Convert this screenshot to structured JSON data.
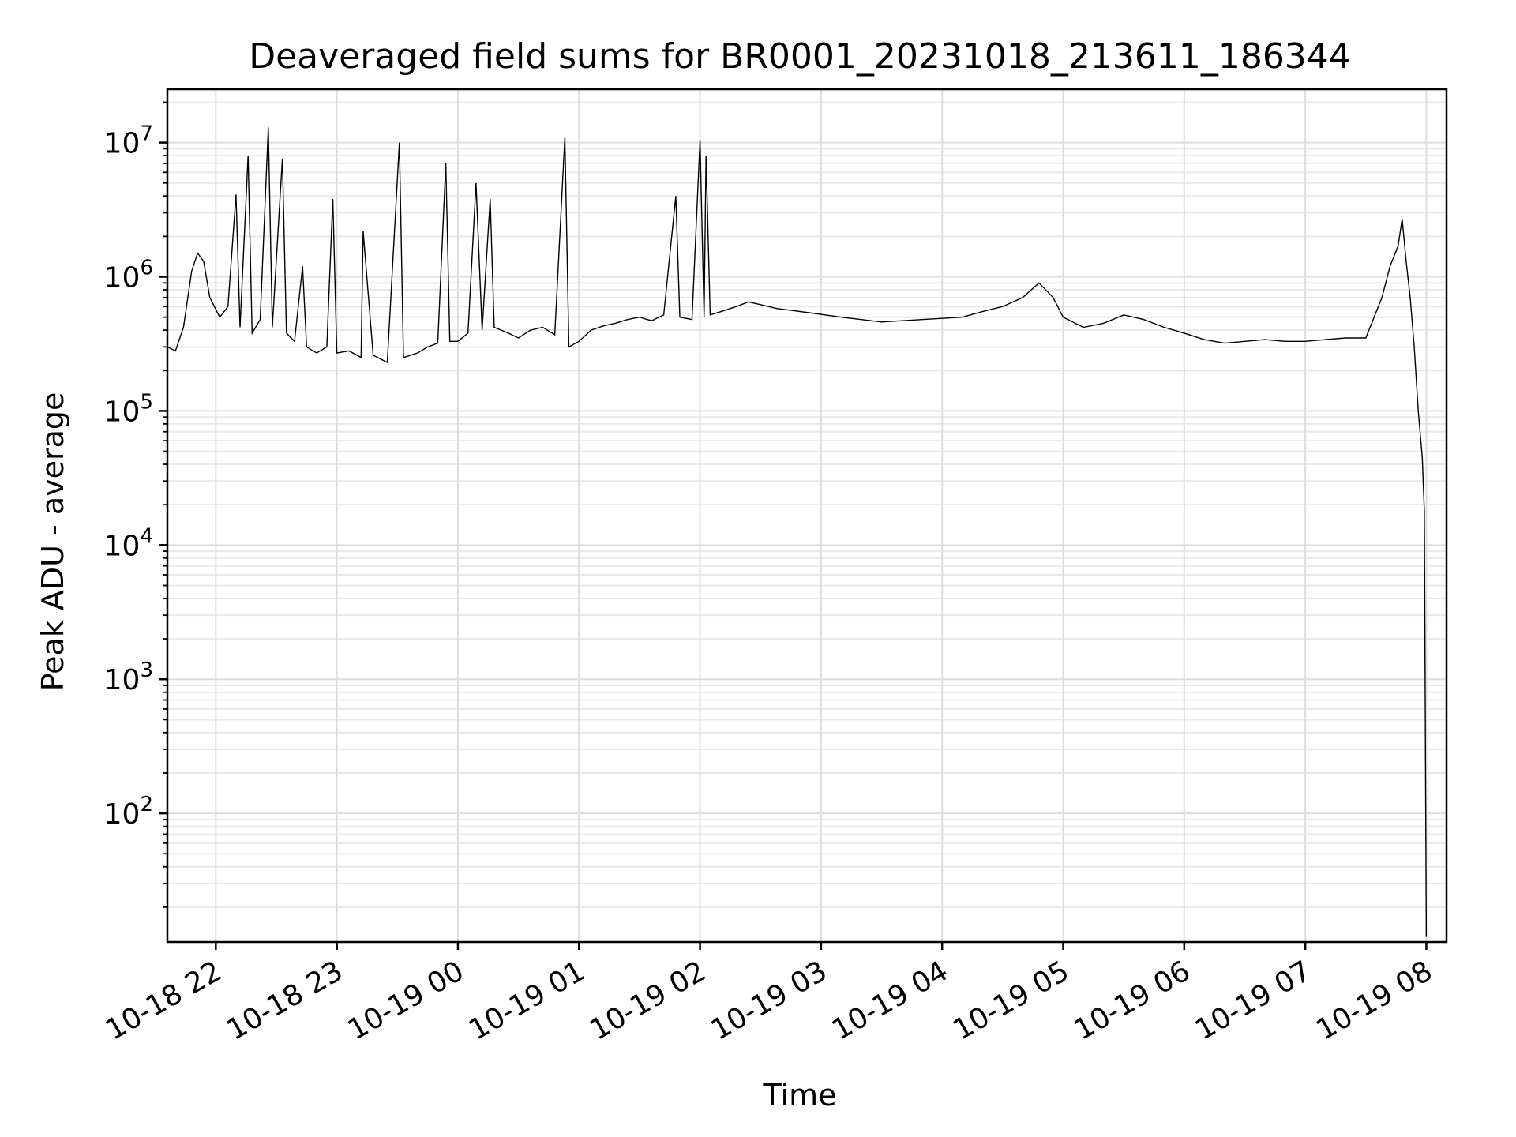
{
  "chart_data": {
    "type": "line",
    "title": "Deaveraged field sums for BR0001_20231018_213611_186344",
    "xlabel": "Time",
    "ylabel": "Peak ADU - average",
    "yscale": "log",
    "ylim": [
      11,
      25000000
    ],
    "xlim": [
      "2023-10-18 21:36",
      "2023-10-19 08:10"
    ],
    "grid": true,
    "x_tick_labels": [
      "10-18 22",
      "10-18 23",
      "10-19 00",
      "10-19 01",
      "10-19 02",
      "10-19 03",
      "10-19 04",
      "10-19 05",
      "10-19 06",
      "10-19 07",
      "10-19 08"
    ],
    "x_ticks": [
      "2023-10-18 22:00",
      "2023-10-18 23:00",
      "2023-10-19 00:00",
      "2023-10-19 01:00",
      "2023-10-19 02:00",
      "2023-10-19 03:00",
      "2023-10-19 04:00",
      "2023-10-19 05:00",
      "2023-10-19 06:00",
      "2023-10-19 07:00",
      "2023-10-19 08:00"
    ],
    "y_tick_labels": [
      {
        "base": "10",
        "exp": "2",
        "value": 100
      },
      {
        "base": "10",
        "exp": "3",
        "value": 1000
      },
      {
        "base": "10",
        "exp": "4",
        "value": 10000
      },
      {
        "base": "10",
        "exp": "5",
        "value": 100000
      },
      {
        "base": "10",
        "exp": "6",
        "value": 1000000
      },
      {
        "base": "10",
        "exp": "7",
        "value": 10000000
      }
    ],
    "series": [
      {
        "color": "#000000",
        "points": [
          [
            "2023-10-18 21:36",
            300000
          ],
          [
            "2023-10-18 21:40",
            280000
          ],
          [
            "2023-10-18 21:44",
            420000
          ],
          [
            "2023-10-18 21:48",
            1100000
          ],
          [
            "2023-10-18 21:51",
            1500000
          ],
          [
            "2023-10-18 21:54",
            1300000
          ],
          [
            "2023-10-18 21:57",
            700000
          ],
          [
            "2023-10-18 22:02",
            500000
          ],
          [
            "2023-10-18 22:06",
            600000
          ],
          [
            "2023-10-18 22:10",
            4100000
          ],
          [
            "2023-10-18 22:12",
            420000
          ],
          [
            "2023-10-18 22:16",
            8000000
          ],
          [
            "2023-10-18 22:18",
            380000
          ],
          [
            "2023-10-18 22:22",
            480000
          ],
          [
            "2023-10-18 22:26",
            13000000
          ],
          [
            "2023-10-18 22:28",
            420000
          ],
          [
            "2023-10-18 22:33",
            7600000
          ],
          [
            "2023-10-18 22:35",
            380000
          ],
          [
            "2023-10-18 22:39",
            330000
          ],
          [
            "2023-10-18 22:43",
            1200000
          ],
          [
            "2023-10-18 22:45",
            300000
          ],
          [
            "2023-10-18 22:50",
            270000
          ],
          [
            "2023-10-18 22:55",
            300000
          ],
          [
            "2023-10-18 22:58",
            3800000
          ],
          [
            "2023-10-18 23:00",
            270000
          ],
          [
            "2023-10-18 23:06",
            280000
          ],
          [
            "2023-10-18 23:12",
            250000
          ],
          [
            "2023-10-18 23:13",
            2200000
          ],
          [
            "2023-10-18 23:18",
            260000
          ],
          [
            "2023-10-18 23:25",
            230000
          ],
          [
            "2023-10-18 23:31",
            10000000
          ],
          [
            "2023-10-18 23:33",
            250000
          ],
          [
            "2023-10-18 23:40",
            270000
          ],
          [
            "2023-10-18 23:45",
            300000
          ],
          [
            "2023-10-18 23:50",
            320000
          ],
          [
            "2023-10-18 23:54",
            7000000
          ],
          [
            "2023-10-18 23:56",
            330000
          ],
          [
            "2023-10-19 00:00",
            330000
          ],
          [
            "2023-10-19 00:05",
            380000
          ],
          [
            "2023-10-19 00:09",
            5000000
          ],
          [
            "2023-10-19 00:12",
            400000
          ],
          [
            "2023-10-19 00:16",
            3800000
          ],
          [
            "2023-10-19 00:18",
            420000
          ],
          [
            "2023-10-19 00:25",
            380000
          ],
          [
            "2023-10-19 00:30",
            350000
          ],
          [
            "2023-10-19 00:36",
            400000
          ],
          [
            "2023-10-19 00:42",
            420000
          ],
          [
            "2023-10-19 00:48",
            370000
          ],
          [
            "2023-10-19 00:53",
            11000000
          ],
          [
            "2023-10-19 00:55",
            300000
          ],
          [
            "2023-10-19 01:00",
            330000
          ],
          [
            "2023-10-19 01:06",
            400000
          ],
          [
            "2023-10-19 01:12",
            430000
          ],
          [
            "2023-10-19 01:18",
            450000
          ],
          [
            "2023-10-19 01:24",
            480000
          ],
          [
            "2023-10-19 01:30",
            500000
          ],
          [
            "2023-10-19 01:36",
            470000
          ],
          [
            "2023-10-19 01:42",
            520000
          ],
          [
            "2023-10-19 01:48",
            4000000
          ],
          [
            "2023-10-19 01:50",
            500000
          ],
          [
            "2023-10-19 01:56",
            480000
          ],
          [
            "2023-10-19 02:00",
            10500000
          ],
          [
            "2023-10-19 02:02",
            500000
          ],
          [
            "2023-10-19 02:03",
            8000000
          ],
          [
            "2023-10-19 02:05",
            520000
          ],
          [
            "2023-10-19 02:12",
            560000
          ],
          [
            "2023-10-19 02:18",
            600000
          ],
          [
            "2023-10-19 02:24",
            650000
          ],
          [
            "2023-10-19 02:30",
            620000
          ],
          [
            "2023-10-19 02:38",
            580000
          ],
          [
            "2023-10-19 02:46",
            560000
          ],
          [
            "2023-10-19 02:54",
            540000
          ],
          [
            "2023-10-19 03:02",
            520000
          ],
          [
            "2023-10-19 03:10",
            500000
          ],
          [
            "2023-10-19 03:20",
            480000
          ],
          [
            "2023-10-19 03:30",
            460000
          ],
          [
            "2023-10-19 03:40",
            470000
          ],
          [
            "2023-10-19 03:50",
            480000
          ],
          [
            "2023-10-19 04:00",
            490000
          ],
          [
            "2023-10-19 04:10",
            500000
          ],
          [
            "2023-10-19 04:20",
            550000
          ],
          [
            "2023-10-19 04:30",
            600000
          ],
          [
            "2023-10-19 04:40",
            700000
          ],
          [
            "2023-10-19 04:48",
            900000
          ],
          [
            "2023-10-19 04:55",
            700000
          ],
          [
            "2023-10-19 05:00",
            500000
          ],
          [
            "2023-10-19 05:10",
            420000
          ],
          [
            "2023-10-19 05:20",
            450000
          ],
          [
            "2023-10-19 05:30",
            520000
          ],
          [
            "2023-10-19 05:40",
            480000
          ],
          [
            "2023-10-19 05:50",
            420000
          ],
          [
            "2023-10-19 06:00",
            380000
          ],
          [
            "2023-10-19 06:10",
            340000
          ],
          [
            "2023-10-19 06:20",
            320000
          ],
          [
            "2023-10-19 06:30",
            330000
          ],
          [
            "2023-10-19 06:40",
            340000
          ],
          [
            "2023-10-19 06:50",
            330000
          ],
          [
            "2023-10-19 07:00",
            330000
          ],
          [
            "2023-10-19 07:10",
            340000
          ],
          [
            "2023-10-19 07:20",
            350000
          ],
          [
            "2023-10-19 07:30",
            350000
          ],
          [
            "2023-10-19 07:38",
            700000
          ],
          [
            "2023-10-19 07:42",
            1200000
          ],
          [
            "2023-10-19 07:46",
            1700000
          ],
          [
            "2023-10-19 07:48",
            2700000
          ],
          [
            "2023-10-19 07:50",
            1300000
          ],
          [
            "2023-10-19 07:52",
            700000
          ],
          [
            "2023-10-19 07:54",
            300000
          ],
          [
            "2023-10-19 07:56",
            100000
          ],
          [
            "2023-10-19 07:58",
            45000
          ],
          [
            "2023-10-19 07:59",
            18000
          ],
          [
            "2023-10-19 08:00",
            12
          ]
        ]
      }
    ]
  }
}
